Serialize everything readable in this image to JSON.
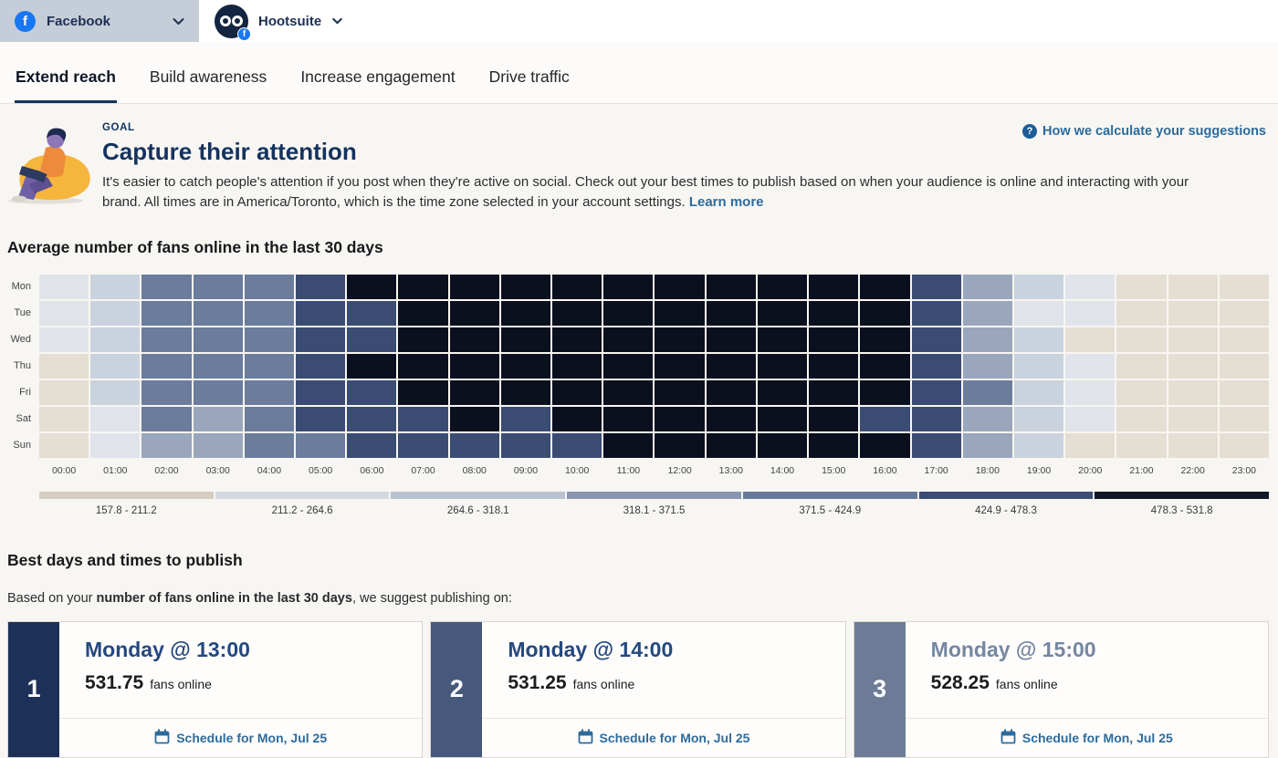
{
  "header": {
    "network_selector": {
      "label": "Facebook",
      "facebook_glyph": "f"
    },
    "account": {
      "name": "Hootsuite",
      "facebook_glyph": "f"
    }
  },
  "tabs": [
    {
      "label": "Extend reach",
      "active": true
    },
    {
      "label": "Build awareness",
      "active": false
    },
    {
      "label": "Increase engagement",
      "active": false
    },
    {
      "label": "Drive traffic",
      "active": false
    }
  ],
  "goal": {
    "eyebrow": "GOAL",
    "title": "Capture their attention",
    "description": "It's easier to catch people's attention if you post when they're active on social. Check out your best times to publish based on when your audience is online and interacting with your brand. All times are in America/Toronto, which is the time zone selected in your account settings.",
    "learn_more_label": "Learn more",
    "help_glyph": "?",
    "help_link_label": "How we calculate your suggestions"
  },
  "chart_data": {
    "type": "heatmap",
    "title": "Average number of fans online in the last 30 days",
    "rows": [
      "Mon",
      "Tue",
      "Wed",
      "Thu",
      "Fri",
      "Sat",
      "Sun"
    ],
    "columns": [
      "00:00",
      "01:00",
      "02:00",
      "03:00",
      "04:00",
      "05:00",
      "06:00",
      "07:00",
      "08:00",
      "09:00",
      "10:00",
      "11:00",
      "12:00",
      "13:00",
      "14:00",
      "15:00",
      "16:00",
      "17:00",
      "18:00",
      "19:00",
      "20:00",
      "21:00",
      "22:00",
      "23:00"
    ],
    "buckets": [
      {
        "label": "157.8 - 211.2",
        "legend_color": "#d5cdc0",
        "cell_color": "#e5dfd3"
      },
      {
        "label": "211.2 - 264.6",
        "legend_color": "#d3d9e1",
        "cell_color": "#e0e4ea"
      },
      {
        "label": "264.6 - 318.1",
        "legend_color": "#b8c2d1",
        "cell_color": "#cad2de"
      },
      {
        "label": "318.1 - 371.5",
        "legend_color": "#8896b0",
        "cell_color": "#9aa6bc"
      },
      {
        "label": "371.5 - 424.9",
        "legend_color": "#67789a",
        "cell_color": "#6b7c9c"
      },
      {
        "label": "424.9 - 478.3",
        "legend_color": "#3b4d73",
        "cell_color": "#3a4c72"
      },
      {
        "label": "478.3 - 531.8",
        "legend_color": "#101828",
        "cell_color": "#0a101d"
      }
    ],
    "matrix": [
      [
        1,
        2,
        4,
        4,
        4,
        5,
        6,
        6,
        6,
        6,
        6,
        6,
        6,
        6,
        6,
        6,
        6,
        5,
        3,
        2,
        1,
        0,
        0,
        0
      ],
      [
        1,
        2,
        4,
        4,
        4,
        5,
        5,
        6,
        6,
        6,
        6,
        6,
        6,
        6,
        6,
        6,
        6,
        5,
        3,
        1,
        1,
        0,
        0,
        0
      ],
      [
        1,
        2,
        4,
        4,
        4,
        5,
        5,
        6,
        6,
        6,
        6,
        6,
        6,
        6,
        6,
        6,
        6,
        5,
        3,
        2,
        0,
        0,
        0,
        0
      ],
      [
        0,
        2,
        4,
        4,
        4,
        5,
        6,
        6,
        6,
        6,
        6,
        6,
        6,
        6,
        6,
        6,
        6,
        5,
        3,
        2,
        1,
        0,
        0,
        0
      ],
      [
        0,
        2,
        4,
        4,
        4,
        5,
        5,
        6,
        6,
        6,
        6,
        6,
        6,
        6,
        6,
        6,
        6,
        5,
        4,
        2,
        1,
        0,
        0,
        0
      ],
      [
        0,
        1,
        4,
        3,
        4,
        5,
        5,
        5,
        6,
        5,
        6,
        6,
        6,
        6,
        6,
        6,
        5,
        5,
        3,
        2,
        1,
        0,
        0,
        0
      ],
      [
        0,
        1,
        3,
        3,
        4,
        4,
        5,
        5,
        5,
        5,
        5,
        6,
        6,
        6,
        6,
        6,
        6,
        5,
        3,
        2,
        0,
        0,
        0,
        0
      ]
    ]
  },
  "best_times": {
    "title": "Best days and times to publish",
    "intro_prefix": "Based on your ",
    "intro_bold": "number of fans online in the last 30 days",
    "intro_suffix": ", we suggest publishing on:",
    "cards": [
      {
        "rank": "1",
        "title": "Monday @ 13:00",
        "value": "531.75",
        "unit": "fans online",
        "action": "Schedule for Mon, Jul 25",
        "stripe_color": "#1d3158",
        "title_color": "#24487f"
      },
      {
        "rank": "2",
        "title": "Monday @ 14:00",
        "value": "531.25",
        "unit": "fans online",
        "action": "Schedule for Mon, Jul 25",
        "stripe_color": "#46597d",
        "title_color": "#24487f"
      },
      {
        "rank": "3",
        "title": "Monday @ 15:00",
        "value": "528.25",
        "unit": "fans online",
        "action": "Schedule for Mon, Jul 25",
        "stripe_color": "#6c7c97",
        "title_color": "#7586a0"
      }
    ]
  },
  "colors": {
    "accent_navy": "#15325d",
    "link_blue": "#2d6b9c",
    "facebook_blue": "#1877f2",
    "network_selector_bg": "#c5cdd8"
  }
}
